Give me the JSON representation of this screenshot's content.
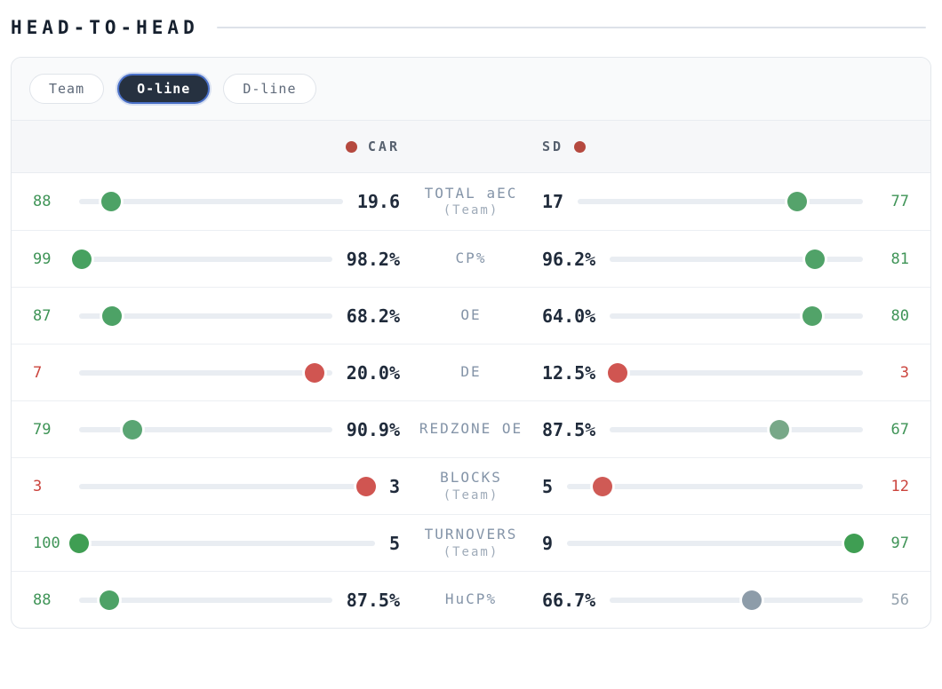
{
  "title": "HEAD-TO-HEAD",
  "tabs": {
    "items": [
      {
        "label": "Team",
        "active": false
      },
      {
        "label": "O-line",
        "active": true
      },
      {
        "label": "D-line",
        "active": false
      }
    ],
    "active_bg": "#263140",
    "active_ring": "#4a70c8"
  },
  "teams": {
    "left": "CAR",
    "right": "SD",
    "dot_color": "#b5493f"
  },
  "palette": {
    "text_green": "#3f9457",
    "text_red": "#cb443d",
    "text_gray": "#94a1ad",
    "track": "#e9edf2",
    "value_text": "#202b3b",
    "label_text": "#8494a8"
  },
  "rows": [
    {
      "label": "TOTAL aEC",
      "sublabel": "(Team)",
      "left": {
        "percentile": 88,
        "value": "19.6",
        "dot_color": "#4da266",
        "text_color": "#3f9457"
      },
      "right": {
        "percentile": 77,
        "value": "17",
        "dot_color": "#55a36b",
        "text_color": "#3f9457"
      }
    },
    {
      "label": "CP%",
      "sublabel": "",
      "left": {
        "percentile": 99,
        "value": "98.2%",
        "dot_color": "#47a160",
        "text_color": "#3f9457"
      },
      "right": {
        "percentile": 81,
        "value": "96.2%",
        "dot_color": "#50a268",
        "text_color": "#3f9457"
      }
    },
    {
      "label": "OE",
      "sublabel": "",
      "left": {
        "percentile": 87,
        "value": "68.2%",
        "dot_color": "#4da266",
        "text_color": "#3f9457"
      },
      "right": {
        "percentile": 80,
        "value": "64.0%",
        "dot_color": "#52a369",
        "text_color": "#3f9457"
      }
    },
    {
      "label": "DE",
      "sublabel": "",
      "left": {
        "percentile": 7,
        "value": "20.0%",
        "dot_color": "#d05551",
        "text_color": "#cb443d"
      },
      "right": {
        "percentile": 3,
        "value": "12.5%",
        "dot_color": "#d05551",
        "text_color": "#cb443d"
      }
    },
    {
      "label": "REDZONE OE",
      "sublabel": "",
      "left": {
        "percentile": 79,
        "value": "90.9%",
        "dot_color": "#5aa573",
        "text_color": "#3f9457"
      },
      "right": {
        "percentile": 67,
        "value": "87.5%",
        "dot_color": "#78a888",
        "text_color": "#3f9457"
      }
    },
    {
      "label": "BLOCKS",
      "sublabel": "(Team)",
      "left": {
        "percentile": 3,
        "value": "3",
        "dot_color": "#d05551",
        "text_color": "#cb443d"
      },
      "right": {
        "percentile": 12,
        "value": "5",
        "dot_color": "#cf5a55",
        "text_color": "#cb443d"
      }
    },
    {
      "label": "TURNOVERS",
      "sublabel": "(Team)",
      "left": {
        "percentile": 100,
        "value": "5",
        "dot_color": "#3f9e53",
        "text_color": "#3f9457"
      },
      "right": {
        "percentile": 97,
        "value": "9",
        "dot_color": "#3f9e53",
        "text_color": "#3f9457"
      }
    },
    {
      "label": "HuCP%",
      "sublabel": "",
      "left": {
        "percentile": 88,
        "value": "87.5%",
        "dot_color": "#4da266",
        "text_color": "#3f9457"
      },
      "right": {
        "percentile": 56,
        "value": "66.7%",
        "dot_color": "#8d9ca9",
        "text_color": "#94a1ad"
      }
    }
  ]
}
